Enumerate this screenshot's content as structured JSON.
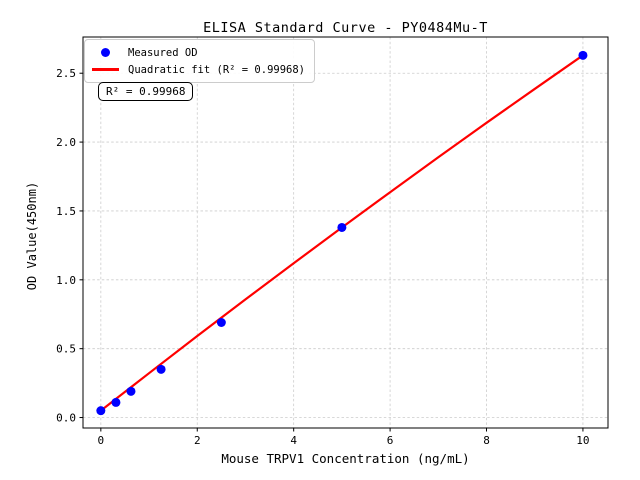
{
  "figure": {
    "annotation_text": "R² = 0.99968"
  },
  "legend": {
    "position": "upper left",
    "items": [
      {
        "label": "Measured OD",
        "marker": "dot",
        "color": "#0000ff"
      },
      {
        "label": "Quadratic fit (R² = 0.99968)",
        "marker": "line",
        "color": "#ff0000"
      }
    ]
  },
  "chart_data": {
    "type": "scatter",
    "title": "ELISA Standard Curve - PY0484Mu-T",
    "xlabel": "Mouse TRPV1 Concentration (ng/mL)",
    "ylabel": "OD Value(450nm)",
    "xlim": [
      -0.37,
      10.52
    ],
    "ylim": [
      -0.076,
      2.763
    ],
    "xticks": [
      0,
      2,
      4,
      6,
      8,
      10
    ],
    "yticks": [
      0,
      0.5,
      1,
      1.5,
      2,
      2.5
    ],
    "grid": true,
    "r_squared": 0.99968,
    "series": [
      {
        "name": "Measured OD",
        "type": "scatter",
        "color": "#0000ff",
        "x": [
          0,
          0.313,
          0.625,
          1.25,
          2.5,
          5,
          10
        ],
        "y": [
          0.05,
          0.11,
          0.19,
          0.35,
          0.69,
          1.38,
          2.63
        ]
      },
      {
        "name": "Quadratic fit (R² = 0.99968)",
        "type": "line",
        "color": "#ff0000",
        "x": [
          0,
          1,
          2,
          3,
          4,
          5,
          6,
          7,
          8,
          9,
          10
        ],
        "y": [
          0.05,
          0.322,
          0.592,
          0.858,
          1.12,
          1.38,
          1.636,
          1.89,
          2.14,
          2.386,
          2.63
        ]
      }
    ]
  }
}
